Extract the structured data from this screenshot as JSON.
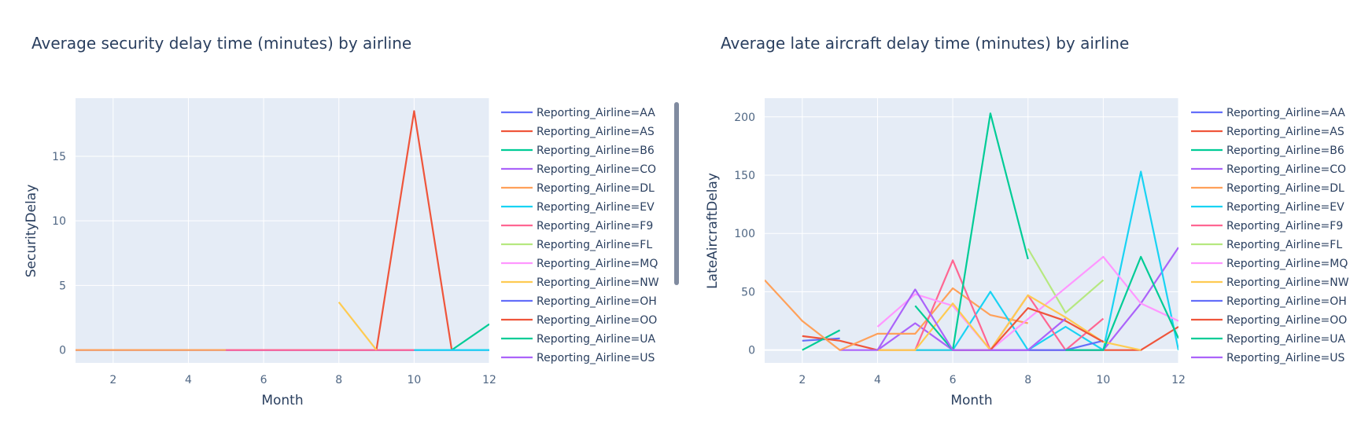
{
  "chart_data": [
    {
      "type": "line",
      "title": "Average security delay time (minutes) by airline",
      "xlabel": "Month",
      "ylabel": "SecurityDelay",
      "xlim": [
        1,
        12
      ],
      "ylim": [
        -1,
        19.5
      ],
      "xticks": [
        2,
        4,
        6,
        8,
        10,
        12
      ],
      "yticks": [
        0,
        5,
        10,
        15
      ],
      "grid": true,
      "legend_position": "right",
      "legend_scrollbar": true,
      "series": [
        {
          "name": "Reporting_Airline=AA",
          "color": "#636efa",
          "points": [
            [
              1,
              0
            ],
            [
              2,
              0
            ],
            [
              3,
              0
            ],
            [
              4,
              0
            ],
            [
              5,
              0
            ],
            [
              6,
              0
            ],
            [
              7,
              0
            ],
            [
              8,
              0
            ],
            [
              9,
              0
            ],
            [
              10,
              0
            ],
            [
              11,
              0
            ],
            [
              12,
              0
            ]
          ]
        },
        {
          "name": "Reporting_Airline=AS",
          "color": "#EF553B",
          "points": [
            [
              9,
              0
            ],
            [
              10,
              18.5
            ],
            [
              11,
              0
            ]
          ]
        },
        {
          "name": "Reporting_Airline=B6",
          "color": "#00cc96",
          "points": [
            [
              11,
              0
            ],
            [
              12,
              2
            ]
          ]
        },
        {
          "name": "Reporting_Airline=CO",
          "color": "#ab63fa",
          "points": [
            [
              5,
              0
            ],
            [
              6,
              0
            ],
            [
              7,
              0
            ],
            [
              8,
              0
            ],
            [
              9,
              0
            ],
            [
              10,
              0
            ]
          ]
        },
        {
          "name": "Reporting_Airline=DL",
          "color": "#FFA15A",
          "points": [
            [
              1,
              0
            ],
            [
              2,
              0
            ],
            [
              3,
              0
            ],
            [
              4,
              0
            ],
            [
              5,
              0
            ]
          ]
        },
        {
          "name": "Reporting_Airline=EV",
          "color": "#19d3f3",
          "points": [
            [
              10,
              0
            ],
            [
              11,
              0
            ],
            [
              12,
              0
            ]
          ]
        },
        {
          "name": "Reporting_Airline=F9",
          "color": "#FF6692",
          "points": [
            [
              5,
              0
            ],
            [
              6,
              0
            ],
            [
              7,
              0
            ],
            [
              8,
              0
            ],
            [
              9,
              0
            ],
            [
              10,
              0
            ]
          ]
        },
        {
          "name": "Reporting_Airline=FL",
          "color": "#B6E880",
          "points": []
        },
        {
          "name": "Reporting_Airline=MQ",
          "color": "#FF97FF",
          "points": []
        },
        {
          "name": "Reporting_Airline=NW",
          "color": "#FECB52",
          "points": [
            [
              8,
              3.7
            ],
            [
              9,
              0
            ]
          ]
        },
        {
          "name": "Reporting_Airline=OH",
          "color": "#636efa",
          "points": []
        },
        {
          "name": "Reporting_Airline=OO",
          "color": "#EF553B",
          "points": []
        },
        {
          "name": "Reporting_Airline=UA",
          "color": "#00cc96",
          "points": []
        },
        {
          "name": "Reporting_Airline=US",
          "color": "#ab63fa",
          "points": []
        }
      ]
    },
    {
      "type": "line",
      "title": "Average late aircraft delay time (minutes) by airline",
      "xlabel": "Month",
      "ylabel": "LateAircraftDelay",
      "xlim": [
        1,
        12
      ],
      "ylim": [
        -11,
        216
      ],
      "xticks": [
        2,
        4,
        6,
        8,
        10,
        12
      ],
      "yticks": [
        0,
        50,
        100,
        150,
        200
      ],
      "grid": true,
      "legend_position": "right",
      "series": [
        {
          "name": "Reporting_Airline=AA",
          "color": "#636efa",
          "points": [
            [
              2,
              8
            ],
            [
              3,
              10
            ]
          ]
        },
        {
          "name": "Reporting_Airline=AS",
          "color": "#EF553B",
          "points": [
            [
              2,
              12
            ],
            [
              3,
              8
            ],
            [
              4,
              0
            ],
            [
              11,
              0
            ],
            [
              12,
              20
            ]
          ]
        },
        {
          "name": "Reporting_Airline=B6",
          "color": "#00cc96",
          "points": [
            [
              2,
              0
            ],
            [
              3,
              17
            ]
          ]
        },
        {
          "name": "Reporting_Airline=CO",
          "color": "#ab63fa",
          "points": [
            [
              3,
              0
            ],
            [
              4,
              0
            ],
            [
              5,
              23
            ],
            [
              6,
              0
            ],
            [
              7,
              0
            ],
            [
              8,
              0
            ],
            [
              9,
              0
            ],
            [
              10,
              0
            ],
            [
              11,
              40
            ],
            [
              12,
              88
            ]
          ]
        },
        {
          "name": "Reporting_Airline=DL",
          "color": "#FFA15A",
          "points": [
            [
              1,
              60
            ],
            [
              2,
              25
            ],
            [
              3,
              0
            ],
            [
              4,
              14
            ],
            [
              5,
              14
            ],
            [
              6,
              53
            ],
            [
              7,
              30
            ],
            [
              8,
              23
            ]
          ]
        },
        {
          "name": "Reporting_Airline=EV",
          "color": "#19d3f3",
          "points": [
            [
              5,
              0
            ],
            [
              6,
              0
            ],
            [
              7,
              50
            ],
            [
              8,
              0
            ],
            [
              9,
              20
            ],
            [
              10,
              0
            ],
            [
              11,
              153
            ],
            [
              12,
              0
            ]
          ]
        },
        {
          "name": "Reporting_Airline=F9",
          "color": "#FF6692",
          "points": [
            [
              5,
              0
            ],
            [
              6,
              77
            ],
            [
              7,
              0
            ],
            [
              8,
              47
            ],
            [
              9,
              0
            ],
            [
              10,
              27
            ]
          ]
        },
        {
          "name": "Reporting_Airline=FL",
          "color": "#B6E880",
          "points": [
            [
              8,
              87
            ],
            [
              9,
              32
            ],
            [
              10,
              60
            ]
          ]
        },
        {
          "name": "Reporting_Airline=MQ",
          "color": "#FF97FF",
          "points": [
            [
              4,
              20
            ],
            [
              5,
              48
            ],
            [
              6,
              38
            ],
            [
              7,
              0
            ],
            [
              10,
              80
            ],
            [
              11,
              40
            ],
            [
              12,
              25
            ]
          ]
        },
        {
          "name": "Reporting_Airline=NW",
          "color": "#FECB52",
          "points": [
            [
              4,
              0
            ],
            [
              5,
              0
            ],
            [
              6,
              40
            ],
            [
              7,
              0
            ],
            [
              8,
              47
            ],
            [
              9,
              28
            ],
            [
              10,
              7
            ],
            [
              11,
              0
            ]
          ]
        },
        {
          "name": "Reporting_Airline=OH",
          "color": "#636efa",
          "points": [
            [
              6,
              0
            ],
            [
              7,
              0
            ],
            [
              8,
              0
            ],
            [
              9,
              0
            ],
            [
              10,
              8
            ]
          ]
        },
        {
          "name": "Reporting_Airline=OO",
          "color": "#EF553B",
          "points": [
            [
              6,
              0
            ],
            [
              7,
              0
            ],
            [
              8,
              36
            ],
            [
              9,
              25
            ],
            [
              10,
              7
            ]
          ]
        },
        {
          "name": "Reporting_Airline=UA",
          "color": "#00cc96",
          "points": [
            [
              5,
              38
            ],
            [
              6,
              0
            ],
            [
              7,
              203
            ],
            [
              8,
              78
            ]
          ]
        },
        {
          "name": "Reporting_Airline=UA",
          "color": "#00cc96",
          "points": [
            [
              9,
              0
            ],
            [
              10,
              0
            ],
            [
              11,
              80
            ],
            [
              12,
              10
            ]
          ]
        },
        {
          "name": "Reporting_Airline=US",
          "color": "#ab63fa",
          "points": [
            [
              4,
              0
            ],
            [
              5,
              52
            ],
            [
              6,
              0
            ],
            [
              7,
              0
            ],
            [
              8,
              0
            ],
            [
              9,
              27
            ]
          ]
        }
      ]
    }
  ]
}
